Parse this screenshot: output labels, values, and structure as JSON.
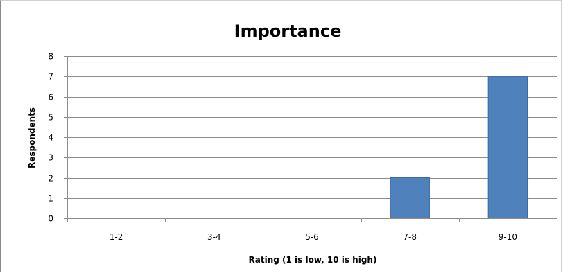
{
  "chart_data": {
    "type": "bar",
    "title": "Importance",
    "xlabel": "Rating (1 is low, 10 is high)",
    "ylabel": "Respondents",
    "categories": [
      "1-2",
      "3-4",
      "5-6",
      "7-8",
      "9-10"
    ],
    "values": [
      0,
      0,
      0,
      2,
      7
    ],
    "ylim": [
      0,
      8
    ],
    "yticks": [
      "0",
      "1",
      "2",
      "3",
      "4",
      "5",
      "6",
      "7",
      "8"
    ],
    "grid": true,
    "legend": "none",
    "colors": {
      "bar": "#4f81bd",
      "bar_edge": "#3a6a9e",
      "gridline": "#8c8c8c",
      "axis": "#8c8c8c"
    }
  }
}
